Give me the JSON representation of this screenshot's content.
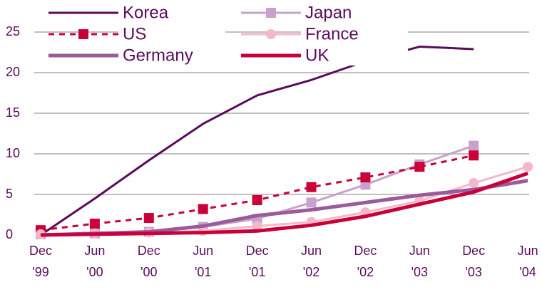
{
  "chart_data": {
    "type": "line",
    "categories": [
      [
        "Dec",
        "'99"
      ],
      [
        "Jun",
        "'00"
      ],
      [
        "Dec",
        "'00"
      ],
      [
        "Jun",
        "'01"
      ],
      [
        "Dec",
        "'01"
      ],
      [
        "Jun",
        "'02"
      ],
      [
        "Dec",
        "'02"
      ],
      [
        "Jun",
        "'03"
      ],
      [
        "Dec",
        "'03"
      ],
      [
        "Jun",
        "'04"
      ]
    ],
    "ylim": [
      0,
      25
    ],
    "yticks": [
      0,
      5,
      10,
      15,
      20,
      25
    ],
    "grid": true,
    "series": [
      {
        "name": "Korea",
        "color": "#5b0a5c",
        "width": 3,
        "marker": null,
        "dash": false,
        "values": [
          0,
          4.5,
          9.2,
          13.7,
          17.2,
          19.1,
          21.4,
          23.2,
          22.9,
          null
        ]
      },
      {
        "name": "Japan",
        "color": "#c8a2cc",
        "width": 3,
        "marker": "square",
        "dash": false,
        "values": [
          0.1,
          0.2,
          0.4,
          1.0,
          2.0,
          4.0,
          6.2,
          8.7,
          11.0,
          null
        ]
      },
      {
        "name": "US",
        "color": "#cc0039",
        "width": 3,
        "marker": "square",
        "dash": true,
        "values": [
          0.6,
          1.4,
          2.1,
          3.2,
          4.3,
          5.9,
          7.1,
          8.4,
          9.8,
          null
        ]
      },
      {
        "name": "France",
        "color": "#f4b8c8",
        "width": 3,
        "marker": "circle",
        "dash": false,
        "values": [
          0.1,
          0.2,
          0.3,
          0.5,
          1.1,
          1.6,
          2.8,
          4.2,
          6.4,
          8.4
        ]
      },
      {
        "name": "Germany",
        "color": "#9b5a9b",
        "width": 5,
        "marker": null,
        "dash": false,
        "values": [
          0,
          0.2,
          0.4,
          1.1,
          2.4,
          3.1,
          4.0,
          4.9,
          5.6,
          6.7
        ]
      },
      {
        "name": "UK",
        "color": "#c8003c",
        "width": 5,
        "marker": null,
        "dash": false,
        "values": [
          0,
          0.1,
          0.2,
          0.3,
          0.5,
          1.2,
          2.3,
          3.8,
          5.3,
          7.6
        ]
      }
    ]
  }
}
